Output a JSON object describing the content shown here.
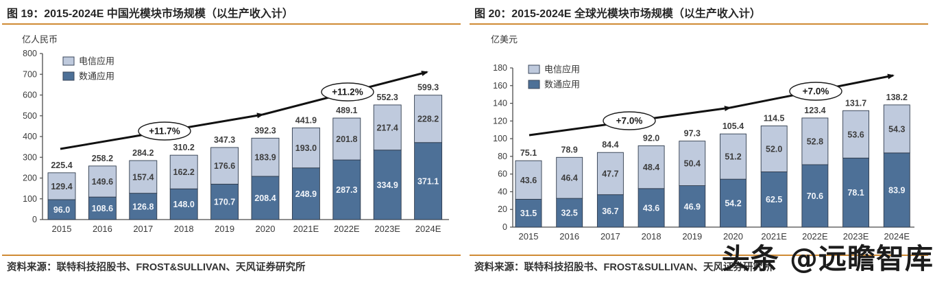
{
  "colors": {
    "accent_line": "#cf8a33",
    "bar_telecom": "#bfcadd",
    "bar_datacom": "#4d7097",
    "bar_border": "#2f3b4c",
    "axis": "#4a4a4a",
    "tick_text": "#3a3a3a",
    "value_text_dark": "#3d3d3d",
    "value_text_light": "#f2f5fa",
    "arrow": "#111111",
    "title_text": "#262626",
    "watermark_text": "#1c1c1c"
  },
  "watermark": {
    "text": "头条 @远瞻智库"
  },
  "panels": [
    {
      "source": "资料来源：联特科技招股书、FROST&SULLIVAN、天风证券研究所"
    },
    {
      "source": "资料来源：联特科技招股书、FROST&SULLIVAN、天风证券研究所"
    }
  ],
  "chart_data": [
    {
      "id": "china-optical-module-market",
      "type": "bar",
      "stacked": true,
      "title": "图 19：2015-2024E 中国光模块市场规模（以生产收入计）",
      "unit_label": "亿人民币",
      "categories": [
        "2015",
        "2016",
        "2017",
        "2018",
        "2019",
        "2020",
        "2021E",
        "2022E",
        "2023E",
        "2024E"
      ],
      "series": [
        {
          "name": "电信应用",
          "color": "#bfcadd",
          "label_color": "#3d3d3d",
          "values": [
            129.4,
            149.6,
            157.4,
            162.2,
            176.6,
            183.9,
            193.0,
            201.8,
            217.4,
            228.2
          ]
        },
        {
          "name": "数通应用",
          "color": "#4d7097",
          "label_color": "#f2f5fa",
          "values": [
            96.0,
            108.6,
            126.8,
            148.0,
            170.7,
            208.4,
            248.9,
            287.3,
            334.9,
            371.1
          ]
        }
      ],
      "stack_order": [
        1,
        0
      ],
      "totals": [
        225.4,
        258.2,
        284.2,
        310.2,
        347.3,
        392.3,
        441.9,
        489.1,
        552.3,
        599.3
      ],
      "ylim": [
        0,
        800
      ],
      "ytick_step": 100,
      "grid": false,
      "legend_position": "top-left",
      "growth_labels": [
        "+11.7%",
        "+11.2%"
      ]
    },
    {
      "id": "global-optical-module-market",
      "type": "bar",
      "stacked": true,
      "title": "图 20：2015-2024E 全球光模块市场规模（以生产收入计）",
      "unit_label": "亿美元",
      "categories": [
        "2015",
        "2016",
        "2017",
        "2018",
        "2019",
        "2020",
        "2021E",
        "2022E",
        "2023E",
        "2024E"
      ],
      "series": [
        {
          "name": "电信应用",
          "color": "#bfcadd",
          "label_color": "#3d3d3d",
          "values": [
            43.6,
            46.4,
            47.7,
            48.4,
            50.4,
            51.2,
            52.0,
            52.8,
            53.6,
            54.3
          ]
        },
        {
          "name": "数通应用",
          "color": "#4d7097",
          "label_color": "#f2f5fa",
          "values": [
            31.5,
            32.5,
            36.7,
            43.6,
            46.9,
            54.2,
            62.5,
            70.6,
            78.1,
            83.9
          ]
        }
      ],
      "stack_order": [
        1,
        0
      ],
      "totals": [
        75.1,
        78.9,
        84.4,
        92.0,
        97.3,
        105.4,
        114.5,
        123.4,
        131.7,
        138.2
      ],
      "ylim": [
        0,
        180
      ],
      "ytick_step": 20,
      "grid": false,
      "legend_position": "top-left",
      "growth_labels": [
        "+7.0%",
        "+7.0%"
      ]
    }
  ]
}
